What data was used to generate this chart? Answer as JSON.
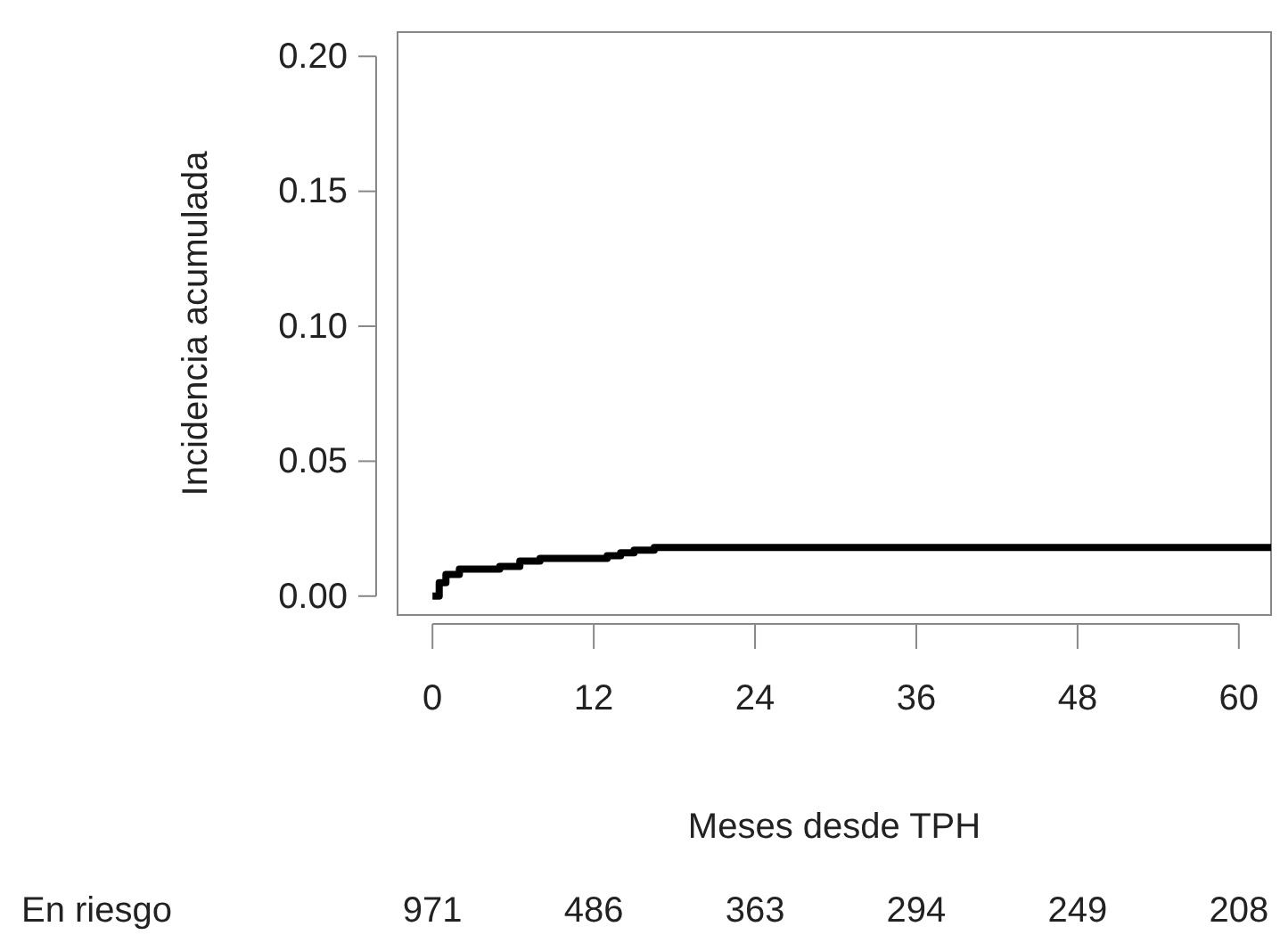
{
  "chart_data": {
    "type": "step",
    "xlabel": "Meses desde TPH",
    "ylabel": "Incidencia acumulada",
    "x": [
      0,
      0.5,
      1,
      2,
      5,
      6.5,
      8,
      13,
      14,
      15,
      16.5,
      62.4
    ],
    "series": [
      {
        "color": "#000000",
        "values": [
          0,
          0.005,
          0.008,
          0.01,
          0.011,
          0.013,
          0.014,
          0.015,
          0.016,
          0.017,
          0.018,
          0.018
        ]
      }
    ],
    "xlim": [
      -2.6,
      62.4
    ],
    "ylim": [
      -0.007,
      0.209
    ],
    "xticks": [
      0,
      12,
      24,
      36,
      48,
      60
    ],
    "yticks": [
      {
        "value": 0,
        "label": "0.00"
      },
      {
        "value": 0.05,
        "label": "0.05"
      },
      {
        "value": 0.1,
        "label": "0.10"
      },
      {
        "value": 0.15,
        "label": "0.15"
      },
      {
        "value": 0.2,
        "label": "0.20"
      }
    ],
    "grid": false,
    "annotations": [
      "En riesgo",
      "971",
      "486",
      "363",
      "294",
      "249",
      "208"
    ]
  }
}
